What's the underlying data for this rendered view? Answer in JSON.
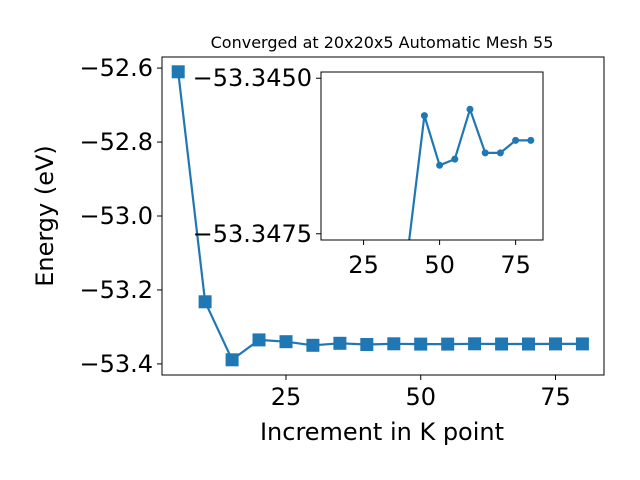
{
  "chart_data": {
    "type": "line",
    "title": "Converged at 20x20x5 Automatic Mesh 55",
    "xlabel": "Increment in K point",
    "ylabel": "Energy (eV)",
    "xlim": [
      2,
      84
    ],
    "ylim": [
      -53.43,
      -52.57
    ],
    "xticks": [
      25,
      50,
      75
    ],
    "yticks": [
      -52.6,
      -52.8,
      -53.0,
      -53.2,
      -53.4
    ],
    "xtick_labels": [
      "25",
      "50",
      "75"
    ],
    "ytick_labels": [
      "−52.6",
      "−52.8",
      "−53.0",
      "−53.2",
      "−53.4"
    ],
    "grid": false,
    "series_color": "#1f77b4",
    "marker": "square",
    "x": [
      5,
      10,
      15,
      20,
      25,
      30,
      35,
      40,
      45,
      50,
      55,
      60,
      65,
      70,
      75,
      80
    ],
    "y": [
      -52.61,
      -53.232,
      -53.389,
      -53.335,
      -53.34,
      -53.3497,
      -53.3443,
      -53.3476,
      -53.3456,
      -53.3464,
      -53.3463,
      -53.3455,
      -53.3462,
      -53.3462,
      -53.346,
      -53.346
    ],
    "inset": {
      "type": "line",
      "marker": "circle",
      "xlim": [
        11,
        84
      ],
      "ylim": [
        -53.3476,
        -53.3449
      ],
      "xticks": [
        25,
        50,
        75
      ],
      "yticks": [
        -53.3475,
        -53.345
      ],
      "xtick_labels": [
        "25",
        "50",
        "75"
      ],
      "ytick_labels": [
        "−53.3475",
        "−53.3450"
      ],
      "x": [
        45,
        50,
        55,
        60,
        65,
        70,
        75,
        80
      ],
      "y": [
        -53.3456,
        -53.3464,
        -53.3463,
        -53.3455,
        -53.3462,
        -53.3462,
        -53.346,
        -53.346
      ],
      "offscreen_lead": {
        "x": 40,
        "y": -53.3476
      }
    }
  }
}
